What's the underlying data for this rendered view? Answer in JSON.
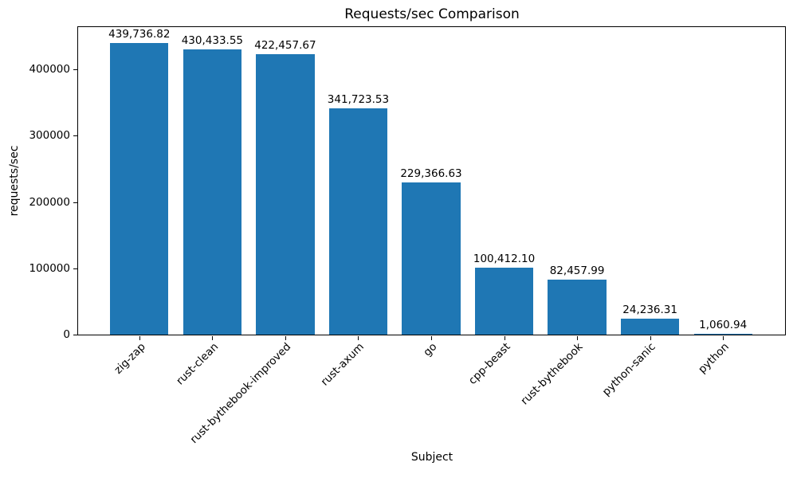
{
  "chart_data": {
    "type": "bar",
    "title": "Requests/sec Comparison",
    "xlabel": "Subject",
    "ylabel": "requests/sec",
    "categories": [
      "zig-zap",
      "rust-clean",
      "rust-bythebook-improved",
      "rust-axum",
      "go",
      "cpp-beast",
      "rust-bythebook",
      "python-sanic",
      "python"
    ],
    "values": [
      439736.82,
      430433.55,
      422457.67,
      341723.53,
      229366.63,
      100412.1,
      82457.99,
      24236.31,
      1060.94
    ],
    "value_labels": [
      "439,736.82",
      "430,433.55",
      "422,457.67",
      "341,723.53",
      "229,366.63",
      "100,412.10",
      "82,457.99",
      "24,236.31",
      "1,060.94"
    ],
    "y_ticks": [
      0,
      100000,
      200000,
      300000,
      400000
    ],
    "y_tick_labels": [
      "0",
      "100000",
      "200000",
      "300000",
      "400000"
    ],
    "ylim": [
      0,
      464865
    ],
    "bar_color": "#1f77b4",
    "text_color": "#000000",
    "grid": false,
    "legend": null
  }
}
